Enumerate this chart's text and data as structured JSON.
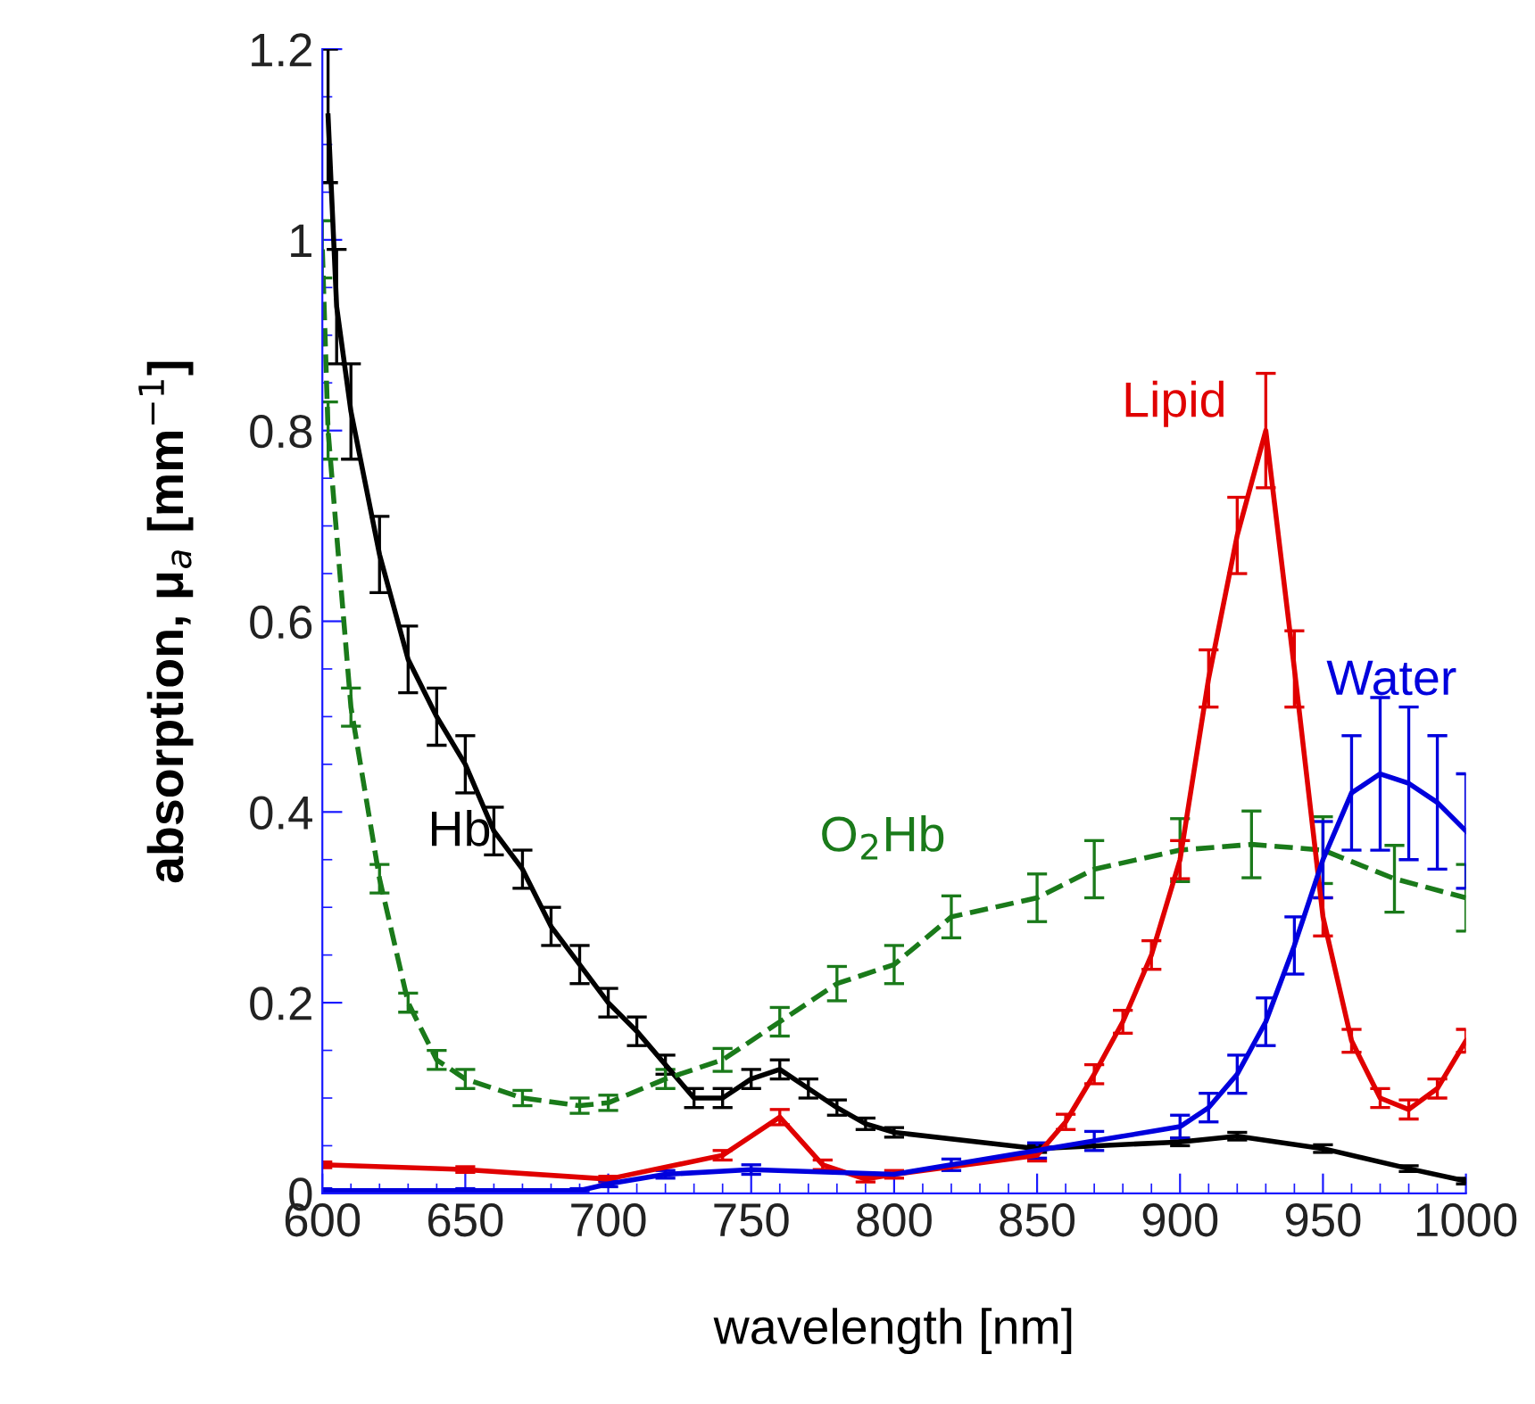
{
  "chart_data": {
    "type": "line",
    "xlabel": "wavelength [nm]",
    "ylabel": "absorption, μ$_{a}$ [mm$^{−1}$]",
    "xlim": [
      600,
      1000
    ],
    "ylim": [
      0,
      1.2
    ],
    "xticks": [
      600,
      650,
      700,
      750,
      800,
      850,
      900,
      950,
      1000
    ],
    "yticks": [
      0,
      0.2,
      0.4,
      0.6,
      0.8,
      1,
      1.2
    ],
    "grid": false,
    "legend": false,
    "marker": "none",
    "series": [
      {
        "name": "Hb",
        "color": "#000000",
        "line_style": "solid",
        "x": [
          602,
          605,
          610,
          620,
          630,
          640,
          650,
          660,
          670,
          680,
          690,
          700,
          710,
          720,
          730,
          740,
          750,
          760,
          770,
          780,
          790,
          800,
          850,
          900,
          920,
          950,
          980,
          1000
        ],
        "values": [
          1.13,
          0.93,
          0.82,
          0.67,
          0.56,
          0.5,
          0.45,
          0.38,
          0.34,
          0.28,
          0.24,
          0.2,
          0.17,
          0.135,
          0.1,
          0.1,
          0.12,
          0.13,
          0.11,
          0.09,
          0.073,
          0.064,
          0.047,
          0.054,
          0.06,
          0.047,
          0.026,
          0.013
        ],
        "errors": [
          0.07,
          0.06,
          0.05,
          0.04,
          0.035,
          0.03,
          0.03,
          0.025,
          0.02,
          0.02,
          0.02,
          0.015,
          0.015,
          0.01,
          0.01,
          0.01,
          0.01,
          0.01,
          0.01,
          0.008,
          0.006,
          0.005,
          0.004,
          0.004,
          0.004,
          0.004,
          0.003,
          0.003
        ]
      },
      {
        "name": "O$_{2}$Hb",
        "color": "#1a7a1a",
        "line_style": "dashed",
        "x": [
          600,
          602,
          610,
          620,
          630,
          640,
          650,
          670,
          690,
          700,
          720,
          740,
          760,
          780,
          800,
          820,
          850,
          870,
          900,
          925,
          950,
          975,
          1000
        ],
        "values": [
          0.99,
          0.8,
          0.51,
          0.33,
          0.2,
          0.14,
          0.12,
          0.1,
          0.092,
          0.095,
          0.12,
          0.14,
          0.18,
          0.22,
          0.24,
          0.29,
          0.31,
          0.34,
          0.36,
          0.366,
          0.36,
          0.33,
          0.31
        ],
        "errors": [
          0.03,
          0.03,
          0.02,
          0.015,
          0.01,
          0.01,
          0.01,
          0.008,
          0.008,
          0.008,
          0.01,
          0.012,
          0.015,
          0.018,
          0.02,
          0.022,
          0.025,
          0.03,
          0.033,
          0.035,
          0.035,
          0.035,
          0.035
        ]
      },
      {
        "name": "Lipid",
        "color": "#e00000",
        "line_style": "solid",
        "x": [
          600,
          650,
          700,
          740,
          760,
          775,
          790,
          800,
          850,
          860,
          870,
          880,
          890,
          900,
          910,
          920,
          930,
          940,
          950,
          960,
          970,
          980,
          990,
          1000
        ],
        "values": [
          0.03,
          0.025,
          0.015,
          0.04,
          0.08,
          0.03,
          0.015,
          0.02,
          0.04,
          0.075,
          0.125,
          0.18,
          0.25,
          0.35,
          0.54,
          0.69,
          0.8,
          0.55,
          0.29,
          0.16,
          0.1,
          0.088,
          0.11,
          0.16
        ],
        "errors": [
          0.003,
          0.003,
          0.003,
          0.005,
          0.008,
          0.005,
          0.003,
          0.004,
          0.006,
          0.008,
          0.01,
          0.012,
          0.015,
          0.02,
          0.03,
          0.04,
          0.06,
          0.04,
          0.02,
          0.012,
          0.01,
          0.01,
          0.01,
          0.012
        ]
      },
      {
        "name": "Water",
        "color": "#0000dd",
        "line_style": "solid",
        "x": [
          600,
          650,
          690,
          700,
          720,
          750,
          800,
          820,
          850,
          870,
          900,
          910,
          920,
          930,
          940,
          950,
          960,
          970,
          980,
          990,
          1000
        ],
        "values": [
          0.003,
          0.003,
          0.003,
          0.01,
          0.02,
          0.025,
          0.02,
          0.03,
          0.045,
          0.055,
          0.07,
          0.09,
          0.125,
          0.18,
          0.26,
          0.35,
          0.42,
          0.44,
          0.43,
          0.41,
          0.38
        ],
        "errors": [
          0.002,
          0.002,
          0.002,
          0.003,
          0.004,
          0.005,
          null,
          0.006,
          0.008,
          0.01,
          0.012,
          0.015,
          0.02,
          0.025,
          0.03,
          0.04,
          0.06,
          0.08,
          0.08,
          0.07,
          0.06
        ]
      }
    ]
  }
}
